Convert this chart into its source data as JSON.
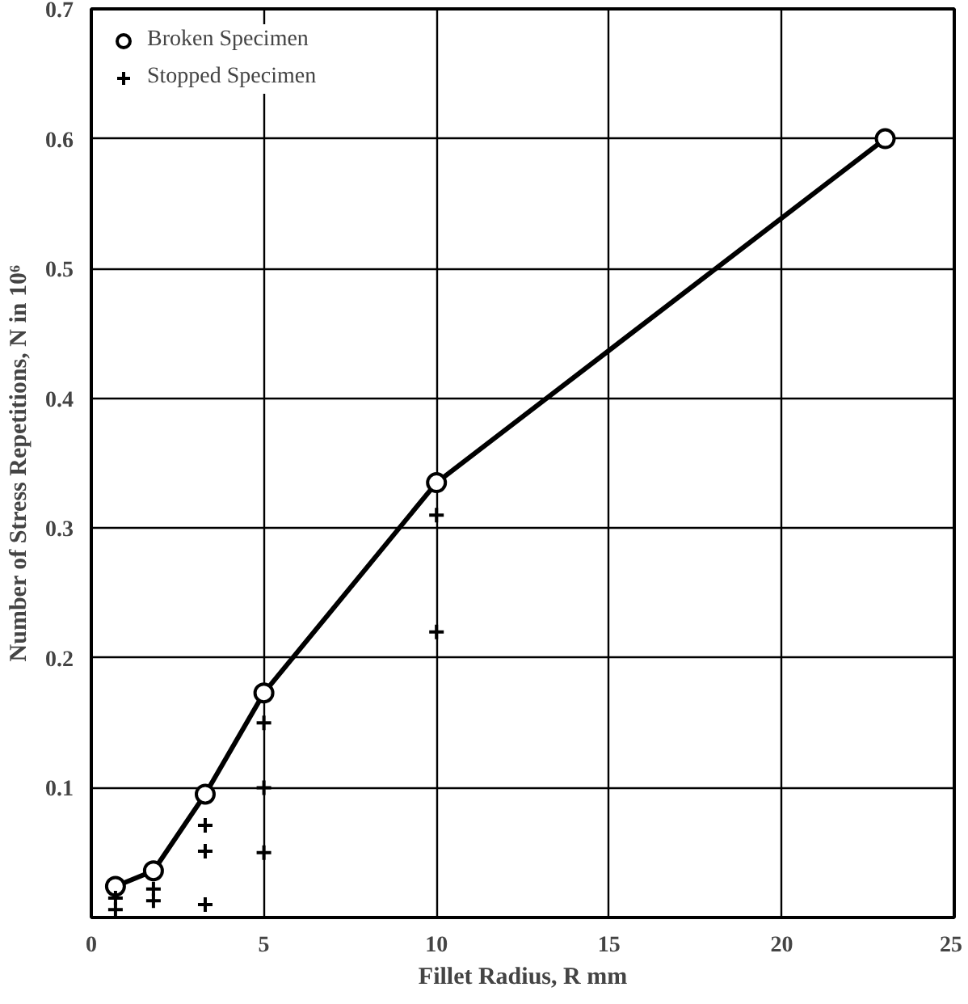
{
  "chart_data": {
    "type": "line",
    "xlabel": "Fillet Radius, R mm",
    "ylabel": "Number of Stress Repetitions, N in 10⁶",
    "series": [
      {
        "name": "Broken Specimen",
        "marker": "circle",
        "color": "#000000",
        "x": [
          0.7,
          1.8,
          3.3,
          5.0,
          10.0,
          23.0
        ],
        "values": [
          0.024,
          0.036,
          0.095,
          0.173,
          0.335,
          0.6
        ]
      },
      {
        "name": "Stopped Specimen",
        "type": "scatter",
        "marker": "cross",
        "color": "#000000",
        "x": [
          0.7,
          0.7,
          1.8,
          1.8,
          3.3,
          3.3,
          3.3,
          5.0,
          5.0,
          5.0,
          10.0,
          10.0
        ],
        "values": [
          0.015,
          0.006,
          0.022,
          0.013,
          0.071,
          0.051,
          0.01,
          0.15,
          0.1,
          0.05,
          0.31,
          0.22
        ]
      }
    ],
    "xlim": [
      0,
      25
    ],
    "ylim": [
      0,
      0.7
    ],
    "xticks": [
      0,
      5,
      10,
      15,
      20,
      25
    ],
    "yticks": [
      0.1,
      0.2,
      0.3,
      0.4,
      0.5,
      0.6,
      0.7
    ],
    "grid": true,
    "legend": "top left"
  }
}
